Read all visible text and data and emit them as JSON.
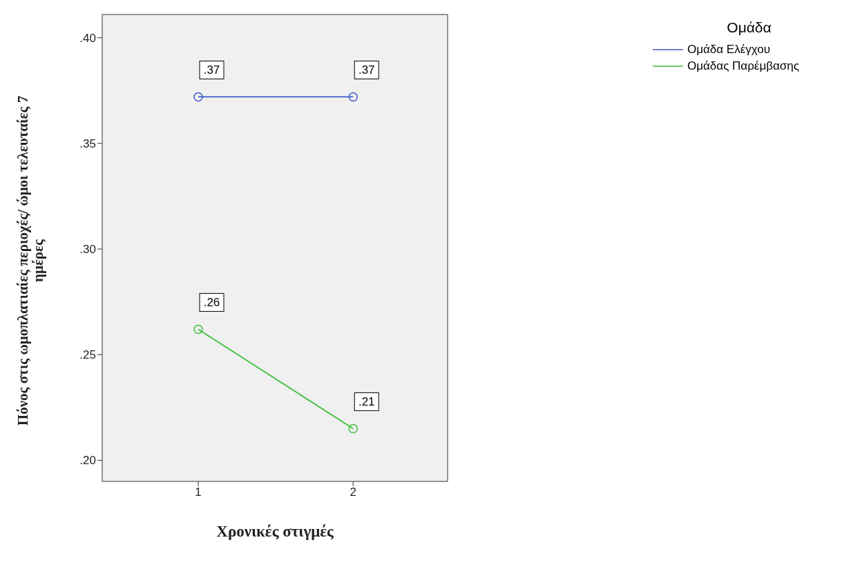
{
  "chart_data": {
    "type": "line",
    "xlabel": "Χρονικές στιγμές",
    "ylabel": "Πόνος στις ωμοπλατιαίες περιοχές/ ώμοι τελευταίες 7 ημέρες",
    "legend_title": "Ομάδα",
    "categories": [
      "1",
      "2"
    ],
    "series": [
      {
        "name": "Ομάδα Ελέγχου",
        "color": "#3e58c8",
        "values": [
          0.372,
          0.372
        ],
        "value_labels": [
          ".37",
          ".37"
        ]
      },
      {
        "name": "Ομάδας Παρέμβασης",
        "color": "#3cbf3c",
        "values": [
          0.262,
          0.215
        ],
        "value_labels": [
          ".26",
          ".21"
        ]
      }
    ],
    "ylim": [
      0.19,
      0.411
    ],
    "yticks": [
      {
        "value": 0.2,
        "label": ".20"
      },
      {
        "value": 0.25,
        "label": ".25"
      },
      {
        "value": 0.3,
        "label": ".30"
      },
      {
        "value": 0.35,
        "label": ".35"
      },
      {
        "value": 0.4,
        "label": ".40"
      }
    ],
    "grid": false,
    "legend": "top right",
    "marker": "circle",
    "line_style": "solid"
  }
}
